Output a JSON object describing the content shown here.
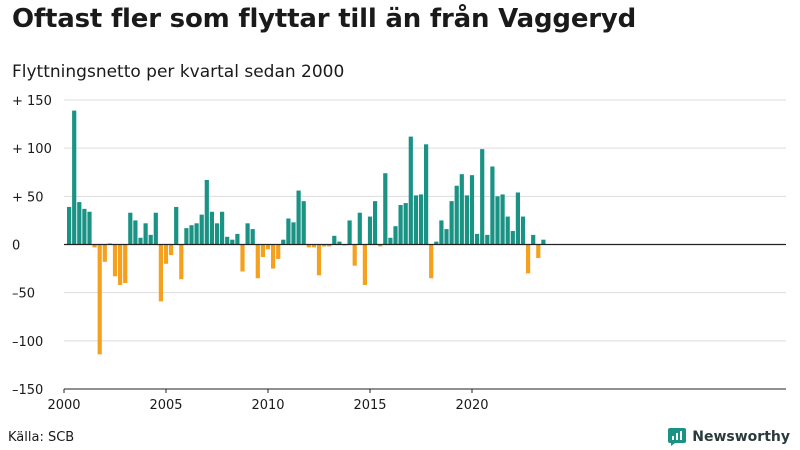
{
  "header": {
    "title": "Oftast fler som flyttar till än från Vaggeryd",
    "subtitle": "Flyttningsnetto per kvartal sedan 2000"
  },
  "footer": {
    "source": "Källa: SCB",
    "brand": "Newsworthy",
    "brand_icon": "newsworthy-logo-icon"
  },
  "colors": {
    "positive": "#1a9385",
    "negative": "#f5a11e",
    "grid": "#dddddd",
    "brand": "#1a9385"
  },
  "chart_data": {
    "type": "bar",
    "x_start": "2000 Q1",
    "frequency": "quarterly",
    "values": [
      39,
      139,
      44,
      37,
      34,
      -3,
      -114,
      -18,
      1,
      -33,
      -42,
      -40,
      33,
      25,
      7,
      22,
      10,
      33,
      -59,
      -20,
      -11,
      39,
      -36,
      17,
      20,
      22,
      31,
      67,
      34,
      22,
      34,
      8,
      5,
      11,
      -28,
      22,
      16,
      -35,
      -13,
      -5,
      -25,
      -15,
      5,
      27,
      23,
      56,
      45,
      -3,
      -3,
      -32,
      -2,
      -2,
      9,
      3,
      -1,
      25,
      -22,
      33,
      -42,
      29,
      45,
      -2,
      74,
      7,
      19,
      41,
      43,
      112,
      51,
      52,
      104,
      -35,
      3,
      25,
      16,
      45,
      61,
      73,
      51,
      72,
      11,
      99,
      10,
      81,
      50,
      52,
      29,
      14,
      54,
      29,
      -30,
      10,
      -14,
      5
    ],
    "xticks": [
      "2000",
      "2005",
      "2010",
      "2015",
      "2020"
    ],
    "yticks": [
      "+ 150",
      "+ 100",
      "+  50",
      "0",
      "–50",
      "–100",
      "–150"
    ],
    "ylim": [
      -150,
      150
    ],
    "xlim": [
      "2000 Q1",
      "2023 Q4"
    ],
    "grid": true,
    "legend": "none",
    "positive_color": "#1a9385",
    "negative_color": "#f5a11e"
  }
}
